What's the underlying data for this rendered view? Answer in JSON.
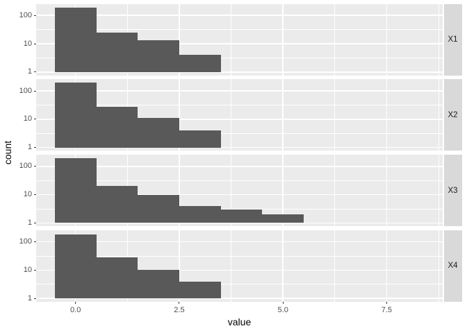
{
  "chart_data": {
    "type": "bar",
    "subtype": "faceted-histogram",
    "title": "",
    "xlabel": "value",
    "ylabel": "count",
    "y_scale": "log10",
    "grid": true,
    "legend": null,
    "binwidth": 1,
    "x_axis": {
      "ticks": [
        0.0,
        2.5,
        5.0,
        7.5
      ],
      "tick_labels": [
        "0.0",
        "2.5",
        "5.0",
        "7.5"
      ],
      "minor_ticks": [
        1.25,
        3.75,
        6.25,
        8.75
      ],
      "range": [
        -0.95,
        8.85
      ]
    },
    "y_axis": {
      "ticks": [
        1,
        10,
        100
      ],
      "tick_labels": [
        "1",
        "10",
        "100"
      ],
      "minor_ticks_log10": [
        0.5,
        1.5
      ],
      "range_log10": [
        -0.115,
        2.41
      ]
    },
    "facets": [
      {
        "label": "X1",
        "bin_centers": [
          0,
          1,
          2,
          3
        ],
        "counts": [
          190,
          25,
          13,
          4
        ]
      },
      {
        "label": "X2",
        "bin_centers": [
          0,
          1,
          2,
          3
        ],
        "counts": [
          195,
          27,
          11,
          4
        ]
      },
      {
        "label": "X3",
        "bin_centers": [
          0,
          1,
          2,
          3,
          4,
          5
        ],
        "counts": [
          190,
          20,
          10,
          4,
          3,
          2
        ]
      },
      {
        "label": "X4",
        "bin_centers": [
          0,
          1,
          2,
          3
        ],
        "counts": [
          185,
          29,
          10,
          4
        ]
      }
    ],
    "colors": {
      "bar_fill": "#595959",
      "panel_background": "#EBEBEB",
      "strip_background": "#D9D9D9",
      "gridline": "#FFFFFF",
      "tick_mark": "#333333",
      "tick_label": "#4D4D4D",
      "axis_title": "#000000",
      "strip_text": "#1A1A1A",
      "figure_background": "#FFFFFF"
    }
  }
}
